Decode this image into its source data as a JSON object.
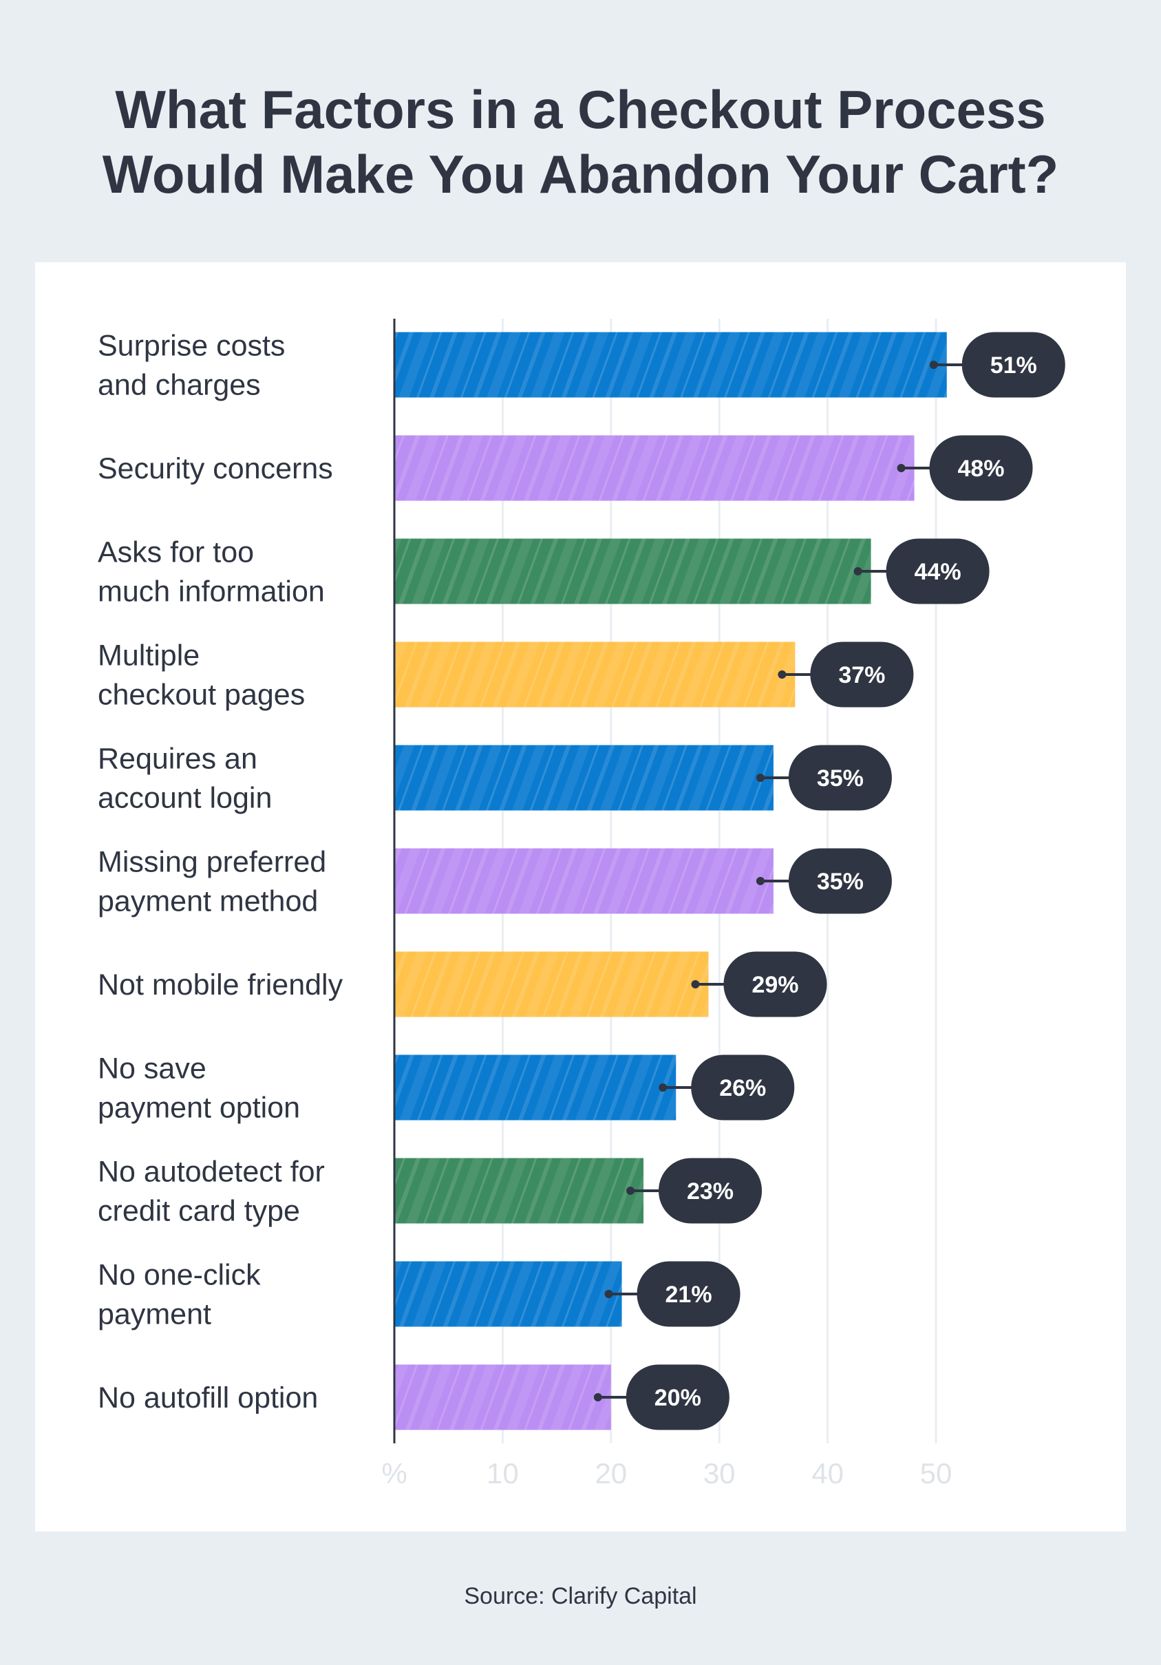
{
  "title_lines": [
    "What Factors in a Checkout Process",
    "Would Make You Abandon Your Cart?"
  ],
  "source": "Source: Clarify Capital",
  "colors": {
    "blue": "#0b7bd0",
    "purple": "#bb8ef3",
    "green": "#3d8c61",
    "yellow": "#ffc24b",
    "pill": "#2f3542",
    "background": "#e9eef2"
  },
  "chart_data": {
    "type": "bar",
    "orientation": "horizontal",
    "categories": [
      [
        "Surprise costs",
        "and charges"
      ],
      [
        "Security concerns"
      ],
      [
        "Asks for too",
        "much information"
      ],
      [
        "Multiple",
        "checkout pages"
      ],
      [
        "Requires an",
        "account login"
      ],
      [
        "Missing preferred",
        "payment method"
      ],
      [
        "Not mobile friendly"
      ],
      [
        "No save",
        "payment option"
      ],
      [
        "No autodetect for",
        "credit card type"
      ],
      [
        "No one-click",
        "payment"
      ],
      [
        "No autofill option"
      ]
    ],
    "values": [
      51,
      48,
      44,
      37,
      35,
      35,
      29,
      26,
      23,
      21,
      20
    ],
    "data_labels": [
      "51%",
      "48%",
      "44%",
      "37%",
      "35%",
      "35%",
      "29%",
      "26%",
      "23%",
      "21%",
      "20%"
    ],
    "bar_colors": [
      "blue",
      "purple",
      "green",
      "yellow",
      "blue",
      "purple",
      "yellow",
      "blue",
      "green",
      "blue",
      "purple"
    ],
    "x_ticks": [
      "%",
      "10",
      "20",
      "30",
      "40",
      "50"
    ],
    "xlim": [
      0,
      60
    ],
    "grid": true
  }
}
